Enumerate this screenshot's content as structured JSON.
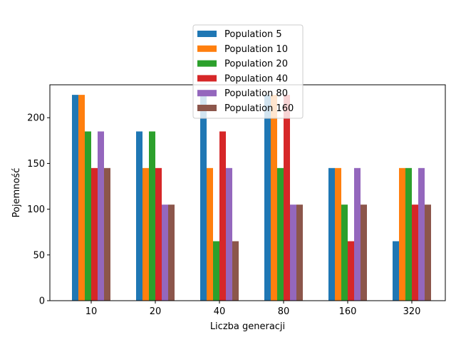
{
  "chart_data": {
    "type": "bar",
    "xlabel": "Liczba generacji",
    "ylabel": "Pojemność",
    "ylim": [
      0,
      236
    ],
    "yticks": [
      0,
      50,
      100,
      150,
      200
    ],
    "categories": [
      "10",
      "20",
      "40",
      "80",
      "160",
      "320"
    ],
    "legend_position": "top-center",
    "grid": false,
    "series": [
      {
        "name": "Population 5",
        "color": "#1f77b4",
        "values": [
          225,
          185,
          225,
          225,
          145,
          65
        ]
      },
      {
        "name": "Population 10",
        "color": "#ff7f0e",
        "values": [
          225,
          145,
          145,
          225,
          145,
          145
        ]
      },
      {
        "name": "Population 20",
        "color": "#2ca02c",
        "values": [
          185,
          185,
          65,
          145,
          105,
          145
        ]
      },
      {
        "name": "Population 40",
        "color": "#d62728",
        "values": [
          145,
          145,
          185,
          225,
          65,
          105
        ]
      },
      {
        "name": "Population 80",
        "color": "#9467bd",
        "values": [
          185,
          105,
          145,
          105,
          145,
          145
        ]
      },
      {
        "name": "Population 160",
        "color": "#8c564b",
        "values": [
          145,
          105,
          65,
          105,
          105,
          105
        ]
      }
    ]
  }
}
